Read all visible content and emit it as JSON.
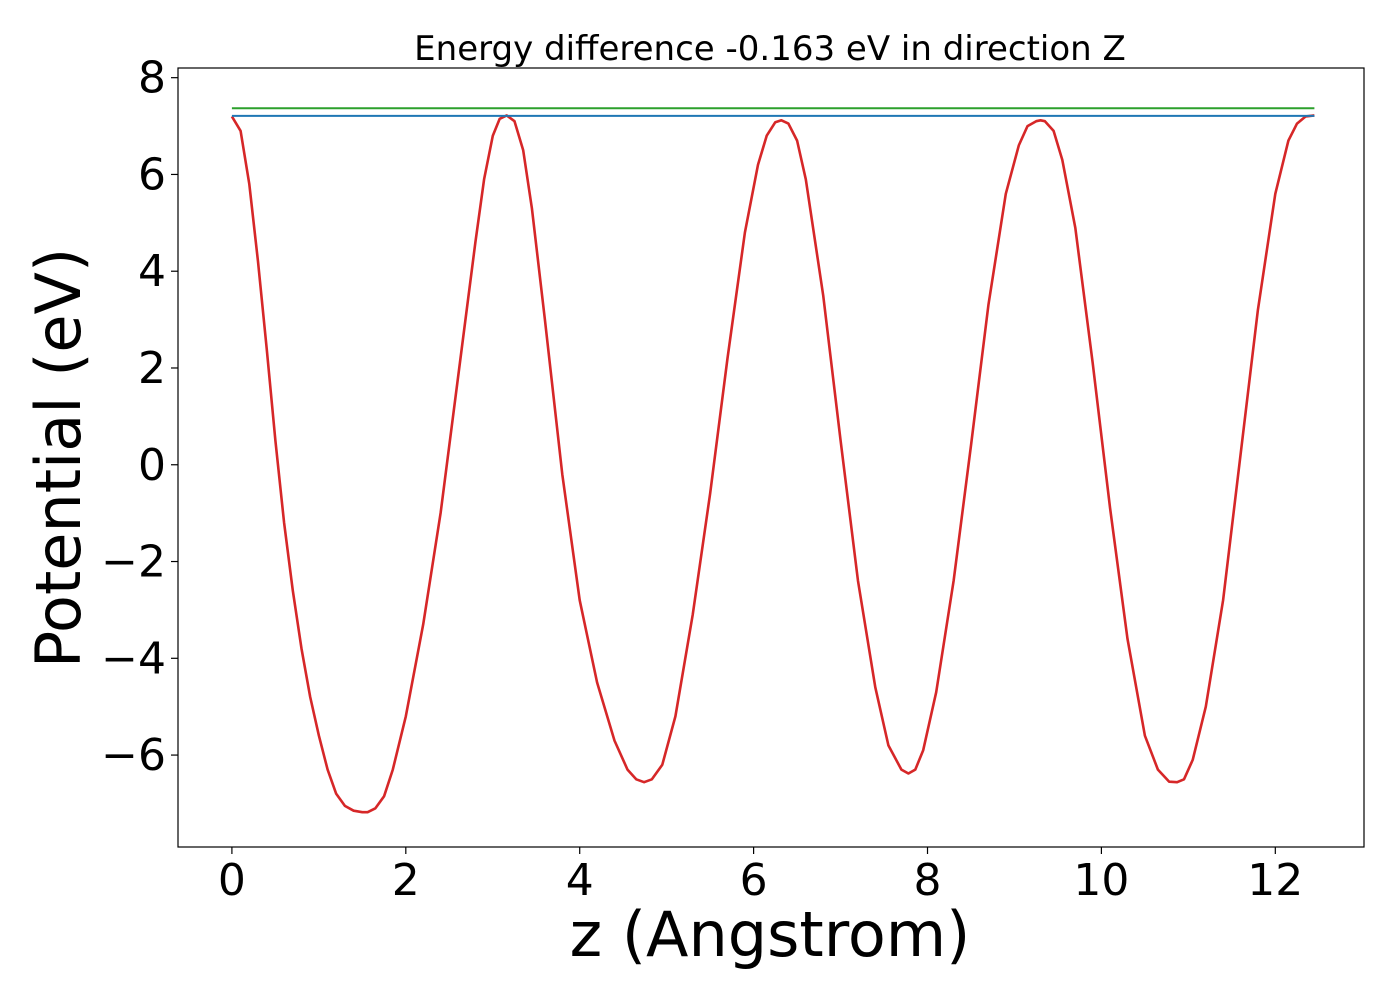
{
  "chart_data": {
    "type": "line",
    "title": "Energy difference -0.163 eV in direction Z",
    "xlabel": "z (Angstrom)",
    "ylabel": "Potential (eV)",
    "xlim": [
      -0.62,
      13.02
    ],
    "ylim": [
      -7.9,
      8.2
    ],
    "xticks": [
      0,
      2,
      4,
      6,
      8,
      10,
      12
    ],
    "yticks": [
      -6,
      -4,
      -2,
      0,
      2,
      4,
      6,
      8
    ],
    "grid": false,
    "colors": {
      "potential": "#d62728",
      "green_line": "#2ca02c",
      "blue_line": "#1f77b4"
    },
    "series": [
      {
        "color": "#d62728",
        "x": [
          0,
          0.1,
          0.2,
          0.3,
          0.4,
          0.5,
          0.6,
          0.7,
          0.8,
          0.9,
          1.0,
          1.1,
          1.2,
          1.3,
          1.4,
          1.5,
          1.56,
          1.65,
          1.75,
          1.85,
          2.0,
          2.2,
          2.4,
          2.6,
          2.8,
          2.9,
          3.0,
          3.08,
          3.16,
          3.25,
          3.35,
          3.45,
          3.6,
          3.8,
          4.0,
          4.2,
          4.4,
          4.55,
          4.65,
          4.74,
          4.83,
          4.95,
          5.1,
          5.3,
          5.5,
          5.7,
          5.9,
          6.05,
          6.15,
          6.25,
          6.32,
          6.4,
          6.5,
          6.6,
          6.8,
          7.0,
          7.2,
          7.4,
          7.55,
          7.7,
          7.78,
          7.86,
          7.95,
          8.1,
          8.3,
          8.5,
          8.7,
          8.9,
          9.05,
          9.15,
          9.25,
          9.3,
          9.35,
          9.45,
          9.55,
          9.7,
          9.9,
          10.1,
          10.3,
          10.5,
          10.65,
          10.78,
          10.87,
          10.95,
          11.05,
          11.2,
          11.4,
          11.6,
          11.8,
          12.0,
          12.15,
          12.25,
          12.35,
          12.45
        ],
        "y": [
          7.2,
          6.9,
          5.8,
          4.2,
          2.4,
          0.5,
          -1.2,
          -2.6,
          -3.8,
          -4.8,
          -5.6,
          -6.3,
          -6.8,
          -7.05,
          -7.15,
          -7.18,
          -7.18,
          -7.1,
          -6.85,
          -6.3,
          -5.2,
          -3.3,
          -1.0,
          1.8,
          4.6,
          5.9,
          6.8,
          7.15,
          7.22,
          7.1,
          6.5,
          5.3,
          3.0,
          -0.2,
          -2.8,
          -4.5,
          -5.7,
          -6.3,
          -6.5,
          -6.56,
          -6.5,
          -6.2,
          -5.2,
          -3.1,
          -0.6,
          2.2,
          4.8,
          6.2,
          6.8,
          7.08,
          7.12,
          7.05,
          6.7,
          5.9,
          3.5,
          0.5,
          -2.4,
          -4.6,
          -5.8,
          -6.3,
          -6.38,
          -6.3,
          -5.9,
          -4.7,
          -2.4,
          0.4,
          3.3,
          5.6,
          6.6,
          7.0,
          7.1,
          7.12,
          7.1,
          6.9,
          6.3,
          4.9,
          2.1,
          -0.9,
          -3.6,
          -5.6,
          -6.3,
          -6.55,
          -6.56,
          -6.5,
          -6.1,
          -5.0,
          -2.8,
          0.2,
          3.2,
          5.6,
          6.7,
          7.05,
          7.2,
          7.22
        ]
      },
      {
        "color": "#2ca02c",
        "x": [
          0,
          12.45
        ],
        "y": [
          7.37,
          7.37
        ]
      },
      {
        "color": "#1f77b4",
        "x": [
          0,
          12.45
        ],
        "y": [
          7.21,
          7.21
        ]
      }
    ]
  }
}
